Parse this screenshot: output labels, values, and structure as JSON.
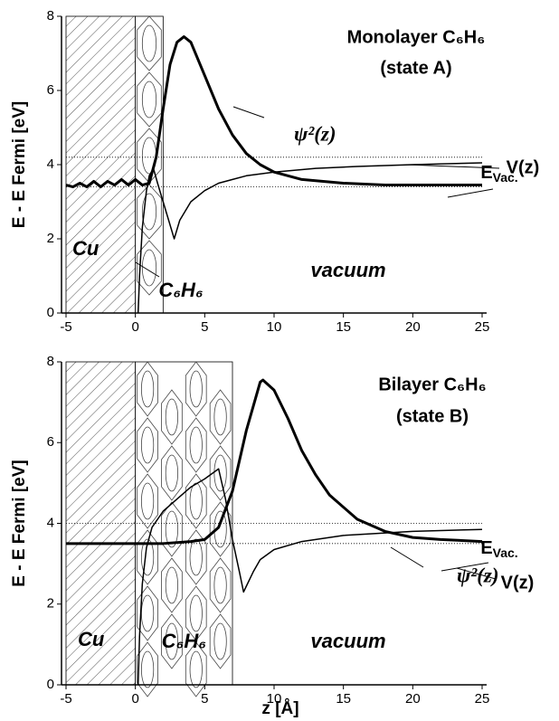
{
  "chart_data": [
    {
      "type": "line",
      "title": "Monolayer C₆H₆",
      "subtitle": "(state A)",
      "ylabel": "E - E Fermi [eV]",
      "xlim": [
        -5,
        25
      ],
      "ylim": [
        0,
        8
      ],
      "xticks": [
        -5,
        0,
        5,
        10,
        15,
        20,
        25
      ],
      "yticks": [
        0,
        2,
        4,
        6,
        8
      ],
      "series": [
        {
          "name": "ψ²(z)",
          "color": "#000000",
          "width": 3,
          "x": [
            -5,
            -4.5,
            -4,
            -3.5,
            -3,
            -2.5,
            -2,
            -1.5,
            -1,
            -0.5,
            0,
            0.5,
            1,
            1.5,
            2,
            2.5,
            3,
            3.5,
            4,
            5,
            6,
            7,
            8,
            9,
            10,
            12,
            15,
            18,
            21,
            25
          ],
          "values": [
            3.45,
            3.4,
            3.5,
            3.4,
            3.55,
            3.4,
            3.55,
            3.45,
            3.6,
            3.45,
            3.6,
            3.45,
            3.5,
            4.2,
            5.5,
            6.7,
            7.3,
            7.45,
            7.3,
            6.4,
            5.5,
            4.8,
            4.3,
            4.0,
            3.8,
            3.6,
            3.5,
            3.45,
            3.45,
            3.45
          ]
        },
        {
          "name": "V(z)",
          "color": "#000000",
          "width": 1.5,
          "x": [
            0.2,
            0.3,
            0.5,
            0.8,
            1.0,
            1.3,
            1.6,
            2.0,
            2.4,
            2.8,
            3.2,
            4,
            5,
            6,
            8,
            10,
            13,
            16,
            20,
            25
          ],
          "values": [
            0,
            1,
            2.3,
            3.3,
            3.7,
            3.9,
            3.5,
            3.0,
            2.5,
            2.0,
            2.5,
            3.0,
            3.3,
            3.5,
            3.7,
            3.8,
            3.9,
            3.95,
            4.0,
            4.05
          ]
        }
      ],
      "hlines": [
        4.2,
        3.4
      ],
      "evac_label": {
        "main": "E",
        "sub": "Vac."
      },
      "regions": [
        {
          "label": "Cu",
          "xlim": [
            -5,
            0
          ],
          "style": "hatch"
        },
        {
          "label": "C₆H₆",
          "xlim": [
            0,
            2
          ],
          "style": "molecule"
        }
      ],
      "medium_label": "vacuum"
    },
    {
      "type": "line",
      "title": "Bilayer C₆H₆",
      "subtitle": "(state B)",
      "ylabel": "E - E Fermi [eV]",
      "xlabel": "z [Å]",
      "xlim": [
        -5,
        25
      ],
      "ylim": [
        0,
        8
      ],
      "xticks": [
        -5,
        0,
        5,
        10,
        15,
        20,
        25
      ],
      "yticks": [
        0,
        2,
        4,
        6,
        8
      ],
      "series": [
        {
          "name": "ψ²(z)",
          "color": "#000000",
          "width": 3,
          "x": [
            -5,
            -2,
            0,
            2,
            4,
            5,
            6,
            7,
            8,
            9,
            9.2,
            10,
            11,
            12,
            13,
            14,
            16,
            18,
            20,
            22,
            25
          ],
          "values": [
            3.5,
            3.5,
            3.5,
            3.5,
            3.55,
            3.6,
            3.9,
            4.8,
            6.3,
            7.5,
            7.55,
            7.3,
            6.6,
            5.8,
            5.2,
            4.7,
            4.1,
            3.8,
            3.65,
            3.6,
            3.55
          ]
        },
        {
          "name": "V(z)",
          "color": "#000000",
          "width": 1.5,
          "x": [
            0.2,
            0.3,
            0.5,
            0.8,
            1.2,
            2,
            3,
            4,
            5,
            6,
            6.5,
            7,
            7.5,
            7.8,
            8.5,
            9,
            10,
            12,
            15,
            20,
            25
          ],
          "values": [
            0,
            1.2,
            2.5,
            3.4,
            3.9,
            4.3,
            4.6,
            4.9,
            5.1,
            5.35,
            4.6,
            3.6,
            2.8,
            2.3,
            2.8,
            3.1,
            3.35,
            3.55,
            3.7,
            3.8,
            3.85
          ]
        }
      ],
      "hlines": [
        4.0,
        3.5
      ],
      "evac_label": {
        "main": "E",
        "sub": "Vac."
      },
      "regions": [
        {
          "label": "Cu",
          "xlim": [
            -5,
            0
          ],
          "style": "hatch"
        },
        {
          "label": "C₆H₆",
          "xlim": [
            0,
            7
          ],
          "style": "molecule"
        }
      ],
      "medium_label": "vacuum"
    }
  ]
}
